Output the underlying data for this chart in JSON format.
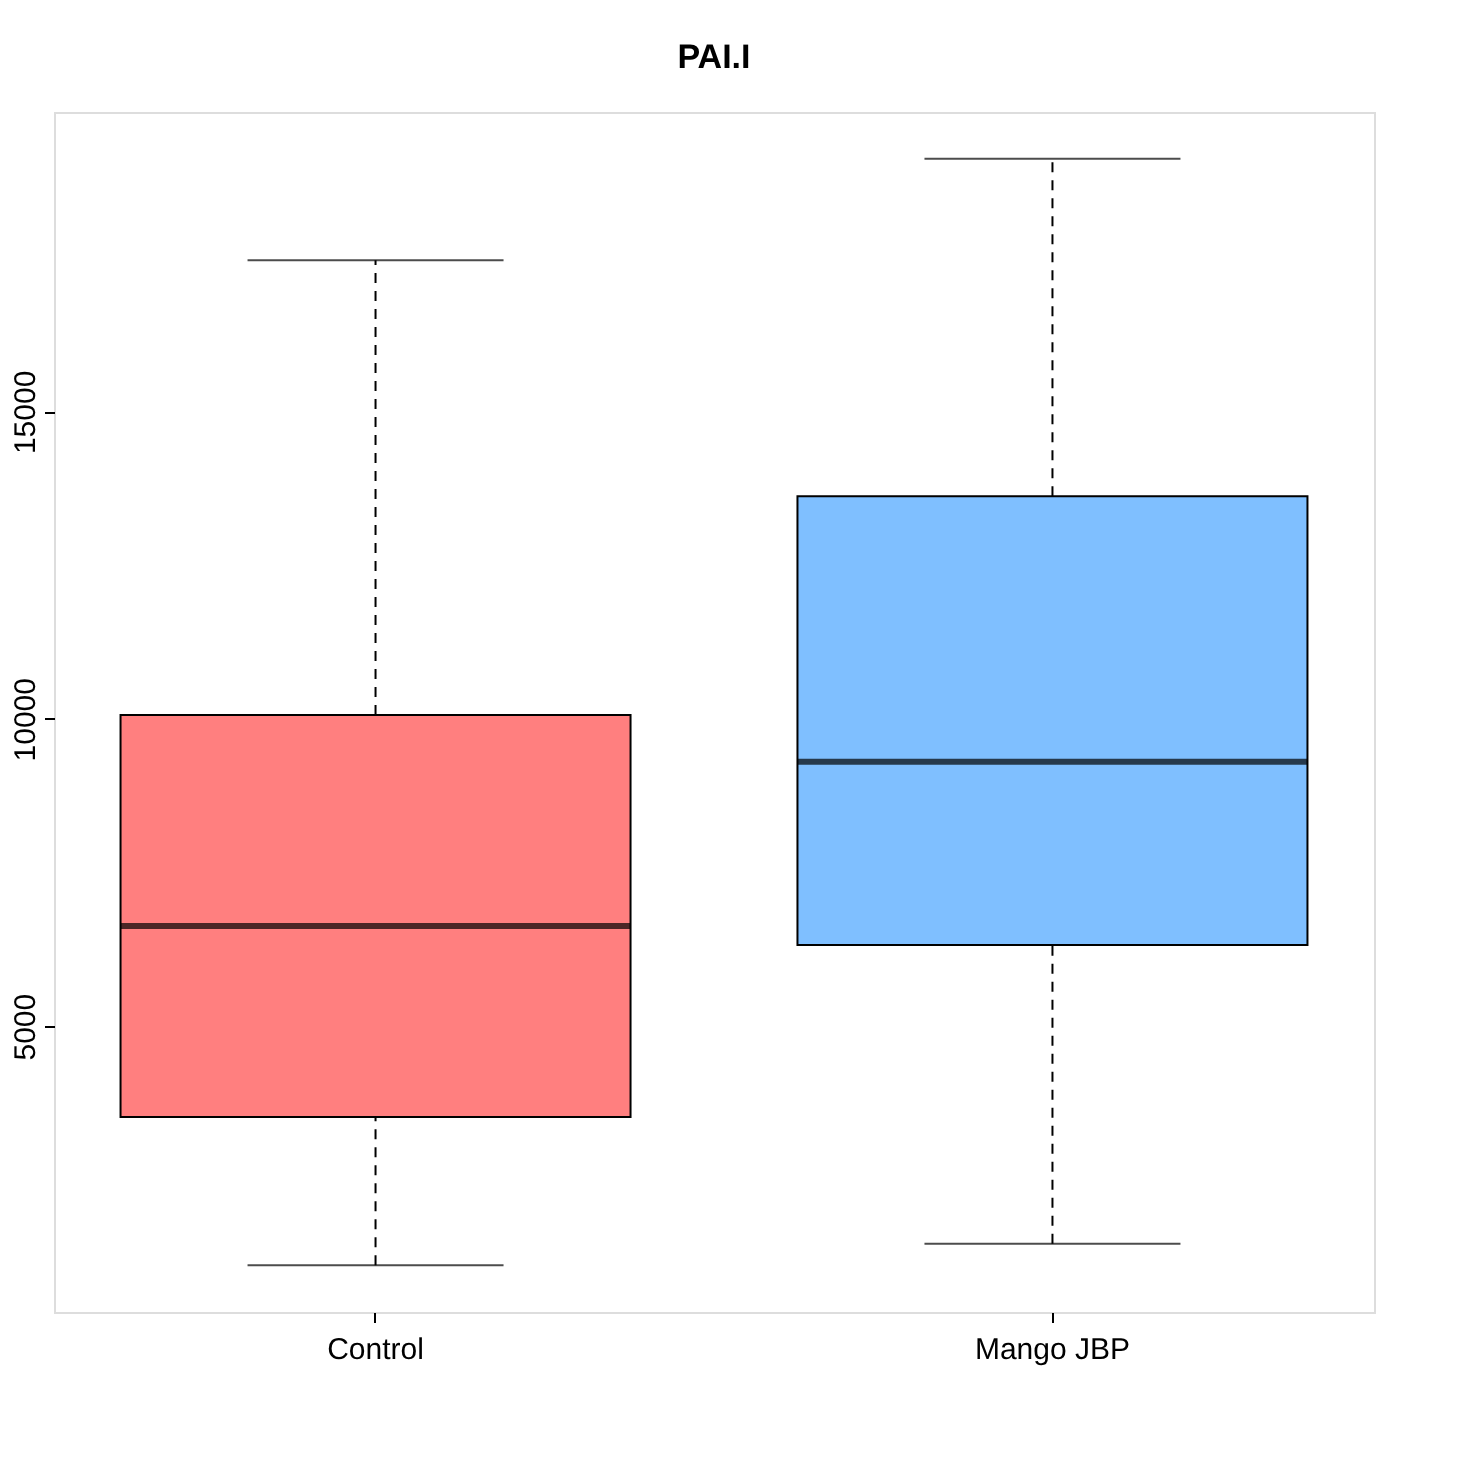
{
  "chart_data": {
    "type": "box",
    "title": "PAI.I",
    "categories": [
      "Control",
      "Mango JBP"
    ],
    "boxes": [
      {
        "low": 1110,
        "q1": 3520,
        "median": 6630,
        "q3": 10060,
        "high": 17460
      },
      {
        "low": 1460,
        "q1": 6320,
        "median": 9300,
        "q3": 13620,
        "high": 19110
      }
    ],
    "colors": [
      "#ff7f7f",
      "#7fbfff"
    ],
    "ylim": [
      350,
      19870
    ],
    "yticks": [
      5000,
      10000,
      15000
    ],
    "grid": false,
    "line_style": "dashed"
  }
}
